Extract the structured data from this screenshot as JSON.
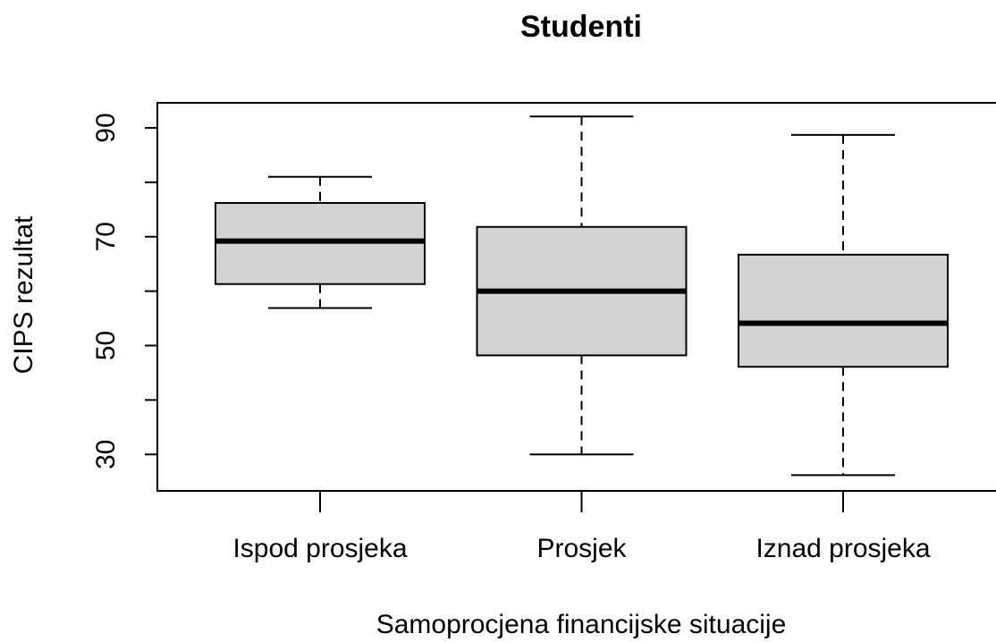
{
  "chart_data": {
    "type": "boxplot",
    "title": "Studenti",
    "xlabel": "Samoprocjena financijske situacije",
    "ylabel": "CIPS rezultat",
    "categories": [
      "Ispod prosjeka",
      "Prosjek",
      "Iznad prosjeka"
    ],
    "boxes": [
      {
        "min": 56.9,
        "q1": 61.3,
        "median": 69.2,
        "q3": 76.2,
        "max": 81.0
      },
      {
        "min": 30.0,
        "q1": 48.2,
        "median": 60.0,
        "q3": 71.8,
        "max": 92.1
      },
      {
        "min": 26.2,
        "q1": 46.1,
        "median": 54.1,
        "q3": 66.7,
        "max": 88.7
      }
    ],
    "color": "#d3d3d3",
    "ylim": [
      23.3,
      94.6
    ],
    "yticks": [
      30,
      50,
      70,
      90
    ],
    "yminor_ticks": [
      40,
      60,
      80
    ]
  }
}
